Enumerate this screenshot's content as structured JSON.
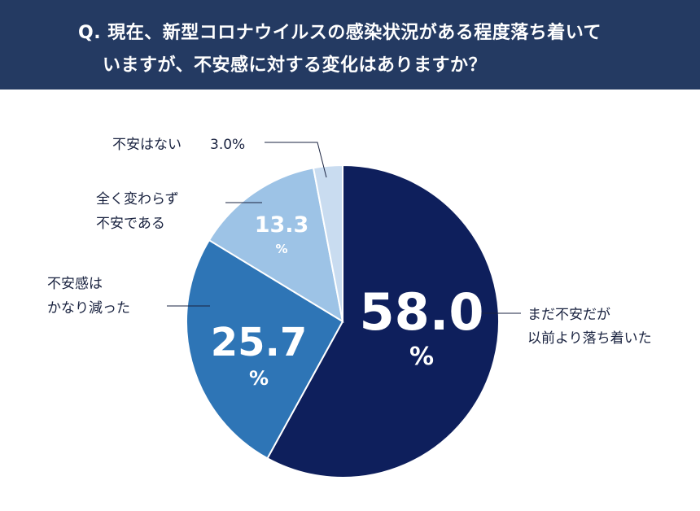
{
  "question": {
    "line1": "Q. 現在、新型コロナウイルスの感染状況がある程度落ち着いて",
    "line2": "いますが、不安感に対する変化はありますか？"
  },
  "colors": {
    "header_bg": "#243a62",
    "slice_1": "#0e1f5c",
    "slice_2": "#2e75b6",
    "slice_3": "#9dc3e6",
    "slice_4": "#c9dcf0",
    "leader": "#1a2340"
  },
  "chart_data": {
    "type": "pie",
    "slices": [
      {
        "label_lines": [
          "まだ不安だが",
          "以前より落ち着いた"
        ],
        "value": 58.0,
        "value_text": "58.0",
        "unit": "%"
      },
      {
        "label_lines": [
          "不安感は",
          "かなり減った"
        ],
        "value": 25.7,
        "value_text": "25.7",
        "unit": "%"
      },
      {
        "label_lines": [
          "全く変わらず",
          "不安である"
        ],
        "value": 13.3,
        "value_text": "13.3",
        "unit": "%"
      },
      {
        "label_lines": [
          "不安はない"
        ],
        "value": 3.0,
        "value_text": "3.0",
        "unit": "%"
      }
    ]
  }
}
